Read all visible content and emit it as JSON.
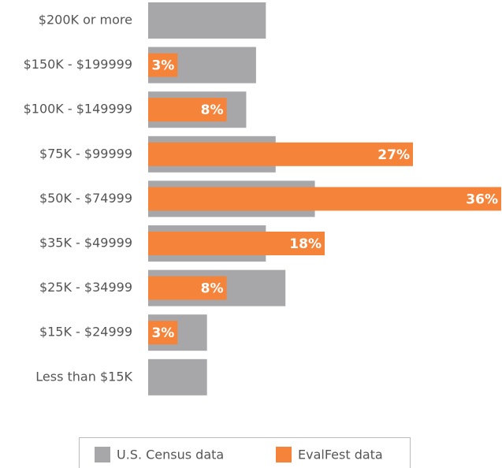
{
  "chart_data": {
    "type": "bar",
    "orientation": "horizontal",
    "categories": [
      "$200K or more",
      "$150K - $199999",
      "$100K - $149999",
      "$75K - $99999",
      "$50K - $74999",
      "$35K - $49999",
      "$25K - $34999",
      "$15K - $24999",
      "Less than $15K"
    ],
    "series": [
      {
        "name": "U.S. Census data",
        "color": "#a7a7a9",
        "values": [
          12,
          11,
          10,
          13,
          17,
          12,
          14,
          6,
          6
        ]
      },
      {
        "name": "EvalFest data",
        "color": "#f5843a",
        "values": [
          null,
          3,
          8,
          27,
          36,
          18,
          8,
          3,
          null
        ],
        "value_labels": [
          null,
          "3%",
          "8%",
          "27%",
          "36%",
          "18%",
          "8%",
          "3%",
          null
        ]
      }
    ],
    "xlim": [
      0,
      36
    ],
    "legend": "bottom"
  }
}
